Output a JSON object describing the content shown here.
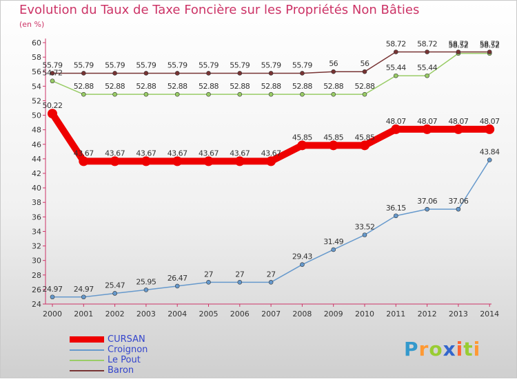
{
  "chart_data": {
    "type": "line",
    "title": "Evolution du Taux de Taxe Foncière sur les Propriétés Non Bâties",
    "ylabel": "(en %)",
    "xlabel": "",
    "categories": [
      "2000",
      "2001",
      "2002",
      "2003",
      "2004",
      "2005",
      "2006",
      "2007",
      "2008",
      "2009",
      "2010",
      "2011",
      "2012",
      "2013",
      "2014"
    ],
    "ylim": [
      24,
      60
    ],
    "yticks": [
      24,
      26,
      28,
      30,
      32,
      34,
      36,
      38,
      40,
      42,
      44,
      46,
      48,
      50,
      52,
      54,
      56,
      58,
      60
    ],
    "grid": false,
    "legend_position": "bottom-left",
    "series": [
      {
        "name": "CURSAN",
        "color": "#ee0000",
        "values": [
          50.22,
          43.67,
          43.67,
          43.67,
          43.67,
          43.67,
          43.67,
          43.67,
          45.85,
          45.85,
          45.85,
          48.07,
          48.07,
          48.07,
          48.07
        ],
        "labels": [
          "50.22",
          "43.67",
          "43.67",
          "43.67",
          "43.67",
          "43.67",
          "43.67",
          "43.67",
          "45.85",
          "45.85",
          "45.85",
          "48.07",
          "48.07",
          "48.07",
          "48.07"
        ]
      },
      {
        "name": "Croignon",
        "color": "#6699cc",
        "values": [
          24.97,
          24.97,
          25.47,
          25.95,
          26.47,
          27,
          27,
          27,
          29.43,
          31.49,
          33.52,
          36.15,
          37.06,
          37.06,
          43.84
        ],
        "labels": [
          "24.97",
          "24.97",
          "25.47",
          "25.95",
          "26.47",
          "27",
          "27",
          "27",
          "29.43",
          "31.49",
          "33.52",
          "36.15",
          "37.06",
          "37.06",
          "43.84"
        ]
      },
      {
        "name": "Le Pout",
        "color": "#99cc66",
        "values": [
          54.72,
          52.88,
          52.88,
          52.88,
          52.88,
          52.88,
          52.88,
          52.88,
          52.88,
          52.88,
          52.88,
          55.44,
          55.44,
          58.52,
          58.52
        ],
        "labels": [
          "54.72",
          "52.88",
          "52.88",
          "52.88",
          "52.88",
          "52.88",
          "52.88",
          "52.88",
          "52.88",
          "52.88",
          "52.88",
          "55.44",
          "55.44",
          "58.52",
          "58.52"
        ]
      },
      {
        "name": "Baron",
        "color": "#773333",
        "values": [
          55.79,
          55.79,
          55.79,
          55.79,
          55.79,
          55.79,
          55.79,
          55.79,
          55.79,
          56,
          56,
          58.72,
          58.72,
          58.72,
          58.72
        ],
        "labels": [
          "55.79",
          "55.79",
          "55.79",
          "55.79",
          "55.79",
          "55.79",
          "55.79",
          "55.79",
          "55.79",
          "56",
          "56",
          "58.72",
          "58.72",
          "58.72",
          "58.72"
        ]
      }
    ]
  },
  "brand": {
    "letters": [
      "P",
      "r",
      "o",
      "x",
      "i",
      "t",
      "i"
    ],
    "colors": [
      "#3399cc",
      "#ff9933",
      "#99cc33",
      "#3366cc",
      "#ff6633",
      "#99cc33",
      "#ff9933"
    ]
  }
}
